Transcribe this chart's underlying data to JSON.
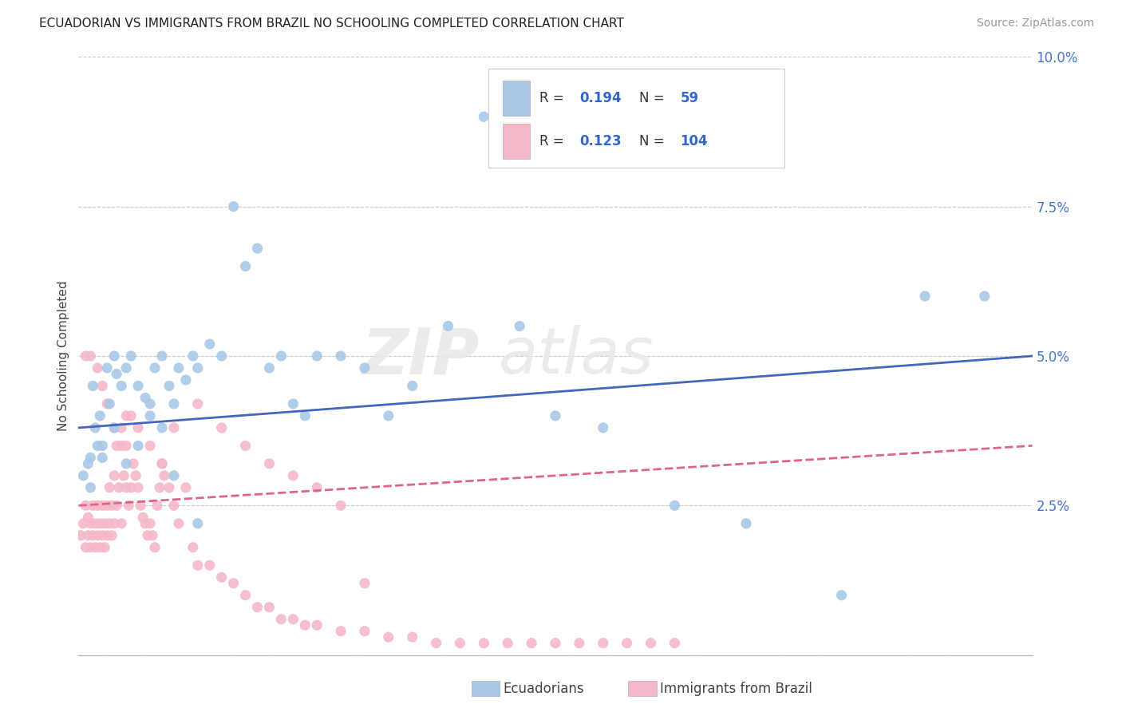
{
  "title": "ECUADORIAN VS IMMIGRANTS FROM BRAZIL NO SCHOOLING COMPLETED CORRELATION CHART",
  "source": "Source: ZipAtlas.com",
  "ylabel": "No Schooling Completed",
  "legend_label1": "Ecuadorians",
  "legend_label2": "Immigrants from Brazil",
  "r1": "0.194",
  "n1": "59",
  "r2": "0.123",
  "n2": "104",
  "color_blue": "#a8c8e8",
  "color_pink": "#f4b8c8",
  "color_blue_line": "#4466bb",
  "color_pink_line": "#dd6688",
  "watermark_zip": "ZIP",
  "watermark_atlas": "atlas",
  "blue_x": [
    0.002,
    0.004,
    0.005,
    0.006,
    0.007,
    0.008,
    0.009,
    0.01,
    0.012,
    0.013,
    0.015,
    0.016,
    0.018,
    0.02,
    0.022,
    0.025,
    0.028,
    0.03,
    0.032,
    0.035,
    0.038,
    0.04,
    0.042,
    0.045,
    0.048,
    0.05,
    0.055,
    0.06,
    0.065,
    0.07,
    0.075,
    0.08,
    0.085,
    0.09,
    0.095,
    0.1,
    0.11,
    0.12,
    0.13,
    0.14,
    0.155,
    0.17,
    0.185,
    0.2,
    0.22,
    0.25,
    0.28,
    0.32,
    0.355,
    0.38,
    0.005,
    0.01,
    0.015,
    0.02,
    0.025,
    0.03,
    0.035,
    0.04,
    0.05
  ],
  "blue_y": [
    0.03,
    0.032,
    0.028,
    0.045,
    0.038,
    0.035,
    0.04,
    0.033,
    0.048,
    0.042,
    0.05,
    0.047,
    0.045,
    0.048,
    0.05,
    0.045,
    0.043,
    0.042,
    0.048,
    0.05,
    0.045,
    0.042,
    0.048,
    0.046,
    0.05,
    0.048,
    0.052,
    0.05,
    0.075,
    0.065,
    0.068,
    0.048,
    0.05,
    0.042,
    0.04,
    0.05,
    0.05,
    0.048,
    0.04,
    0.045,
    0.055,
    0.09,
    0.055,
    0.04,
    0.038,
    0.025,
    0.022,
    0.01,
    0.06,
    0.06,
    0.033,
    0.035,
    0.038,
    0.032,
    0.035,
    0.04,
    0.038,
    0.03,
    0.022
  ],
  "pink_x": [
    0.001,
    0.002,
    0.003,
    0.003,
    0.004,
    0.004,
    0.005,
    0.005,
    0.006,
    0.006,
    0.007,
    0.007,
    0.008,
    0.008,
    0.009,
    0.009,
    0.01,
    0.01,
    0.011,
    0.011,
    0.012,
    0.012,
    0.013,
    0.013,
    0.014,
    0.014,
    0.015,
    0.015,
    0.016,
    0.016,
    0.017,
    0.018,
    0.018,
    0.019,
    0.02,
    0.02,
    0.021,
    0.022,
    0.022,
    0.023,
    0.024,
    0.025,
    0.026,
    0.027,
    0.028,
    0.029,
    0.03,
    0.031,
    0.032,
    0.033,
    0.034,
    0.035,
    0.036,
    0.038,
    0.04,
    0.042,
    0.045,
    0.048,
    0.05,
    0.055,
    0.06,
    0.065,
    0.07,
    0.075,
    0.08,
    0.085,
    0.09,
    0.095,
    0.1,
    0.11,
    0.12,
    0.13,
    0.14,
    0.15,
    0.16,
    0.17,
    0.18,
    0.19,
    0.2,
    0.21,
    0.22,
    0.23,
    0.24,
    0.25,
    0.003,
    0.005,
    0.008,
    0.01,
    0.012,
    0.015,
    0.018,
    0.02,
    0.025,
    0.03,
    0.035,
    0.04,
    0.05,
    0.06,
    0.07,
    0.08,
    0.09,
    0.1,
    0.11,
    0.12
  ],
  "pink_y": [
    0.02,
    0.022,
    0.018,
    0.025,
    0.02,
    0.023,
    0.018,
    0.022,
    0.02,
    0.025,
    0.018,
    0.022,
    0.02,
    0.025,
    0.018,
    0.022,
    0.02,
    0.025,
    0.022,
    0.018,
    0.025,
    0.02,
    0.022,
    0.028,
    0.02,
    0.025,
    0.03,
    0.022,
    0.035,
    0.025,
    0.028,
    0.038,
    0.022,
    0.03,
    0.028,
    0.035,
    0.025,
    0.04,
    0.028,
    0.032,
    0.03,
    0.028,
    0.025,
    0.023,
    0.022,
    0.02,
    0.022,
    0.02,
    0.018,
    0.025,
    0.028,
    0.032,
    0.03,
    0.028,
    0.025,
    0.022,
    0.028,
    0.018,
    0.015,
    0.015,
    0.013,
    0.012,
    0.01,
    0.008,
    0.008,
    0.006,
    0.006,
    0.005,
    0.005,
    0.004,
    0.004,
    0.003,
    0.003,
    0.002,
    0.002,
    0.002,
    0.002,
    0.002,
    0.002,
    0.002,
    0.002,
    0.002,
    0.002,
    0.002,
    0.05,
    0.05,
    0.048,
    0.045,
    0.042,
    0.038,
    0.035,
    0.04,
    0.038,
    0.035,
    0.032,
    0.038,
    0.042,
    0.038,
    0.035,
    0.032,
    0.03,
    0.028,
    0.025,
    0.012
  ]
}
